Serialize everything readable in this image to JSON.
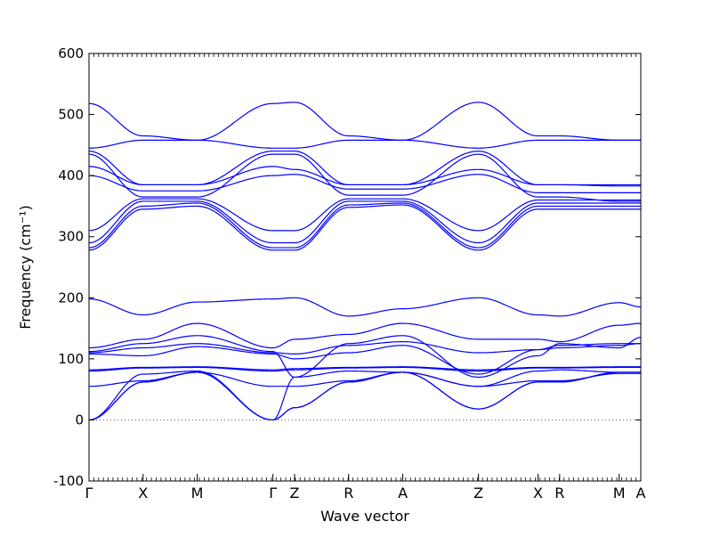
{
  "chart_data": {
    "type": "line",
    "title": "",
    "xlabel": "Wave vector",
    "ylabel": "Frequency (cm⁻¹)",
    "ylim": [
      -100,
      600
    ],
    "yticks": [
      -100,
      0,
      100,
      200,
      300,
      400,
      500,
      600
    ],
    "high_symmetry_points": [
      {
        "label": "Γ",
        "x": 0.0
      },
      {
        "label": "X",
        "x": 0.5
      },
      {
        "label": "M",
        "x": 1.0
      },
      {
        "label": "Γ",
        "x": 1.7
      },
      {
        "label": "Z",
        "x": 1.9
      },
      {
        "label": "R",
        "x": 2.4
      },
      {
        "label": "A",
        "x": 2.9
      },
      {
        "label": "Z",
        "x": 3.6
      },
      {
        "label": "X",
        "x": 4.15
      },
      {
        "label": "R",
        "x": 4.35
      },
      {
        "label": "M",
        "x": 4.9
      },
      {
        "label": "A",
        "x": 5.1
      }
    ],
    "zero_line": true,
    "line_color": "#0000ff",
    "zero_line_color": "#555555",
    "series": [
      {
        "values": [
          0,
          62,
          78,
          0,
          20,
          62,
          78,
          18,
          62,
          62,
          78,
          78
        ]
      },
      {
        "values": [
          0,
          62,
          78,
          0,
          20,
          62,
          78,
          18,
          62,
          62,
          78,
          78
        ]
      },
      {
        "values": [
          0,
          75,
          80,
          0,
          70,
          80,
          78,
          55,
          80,
          82,
          78,
          78
        ]
      },
      {
        "values": [
          55,
          64,
          78,
          55,
          55,
          64,
          78,
          55,
          64,
          64,
          76,
          76
        ]
      },
      {
        "values": [
          80,
          85,
          86,
          80,
          82,
          85,
          86,
          80,
          85,
          85,
          86,
          86
        ]
      },
      {
        "values": [
          82,
          86,
          87,
          82,
          84,
          86,
          87,
          82,
          86,
          86,
          87,
          87
        ]
      },
      {
        "values": [
          108,
          105,
          120,
          108,
          100,
          110,
          122,
          75,
          115,
          118,
          122,
          125
        ]
      },
      {
        "values": [
          110,
          118,
          125,
          110,
          108,
          122,
          128,
          110,
          115,
          122,
          125,
          125
        ]
      },
      {
        "values": [
          112,
          125,
          138,
          112,
          70,
          125,
          138,
          70,
          105,
          125,
          118,
          135
        ]
      },
      {
        "values": [
          118,
          132,
          158,
          118,
          132,
          140,
          158,
          132,
          132,
          128,
          155,
          158
        ]
      },
      {
        "values": [
          198,
          172,
          193,
          198,
          200,
          170,
          182,
          200,
          172,
          170,
          192,
          185
        ]
      },
      {
        "values": [
          278,
          345,
          350,
          278,
          278,
          348,
          352,
          278,
          345,
          345,
          345,
          345
        ]
      },
      {
        "values": [
          282,
          350,
          355,
          282,
          282,
          352,
          355,
          282,
          350,
          350,
          350,
          350
        ]
      },
      {
        "values": [
          290,
          358,
          358,
          290,
          290,
          358,
          358,
          290,
          355,
          355,
          355,
          355
        ]
      },
      {
        "values": [
          310,
          362,
          362,
          310,
          310,
          362,
          362,
          310,
          360,
          360,
          360,
          360
        ]
      },
      {
        "values": [
          400,
          375,
          375,
          400,
          402,
          378,
          378,
          402,
          372,
          372,
          372,
          372
        ]
      },
      {
        "values": [
          415,
          385,
          385,
          415,
          410,
          385,
          385,
          410,
          385,
          385,
          385,
          385
        ]
      },
      {
        "values": [
          435,
          365,
          365,
          435,
          435,
          368,
          368,
          435,
          365,
          365,
          358,
          358
        ]
      },
      {
        "values": [
          440,
          385,
          385,
          440,
          440,
          385,
          385,
          440,
          385,
          385,
          383,
          383
        ]
      },
      {
        "values": [
          445,
          458,
          458,
          445,
          445,
          458,
          458,
          445,
          458,
          458,
          458,
          458
        ]
      },
      {
        "values": [
          518,
          465,
          458,
          518,
          520,
          465,
          458,
          520,
          465,
          465,
          458,
          458
        ]
      }
    ]
  }
}
